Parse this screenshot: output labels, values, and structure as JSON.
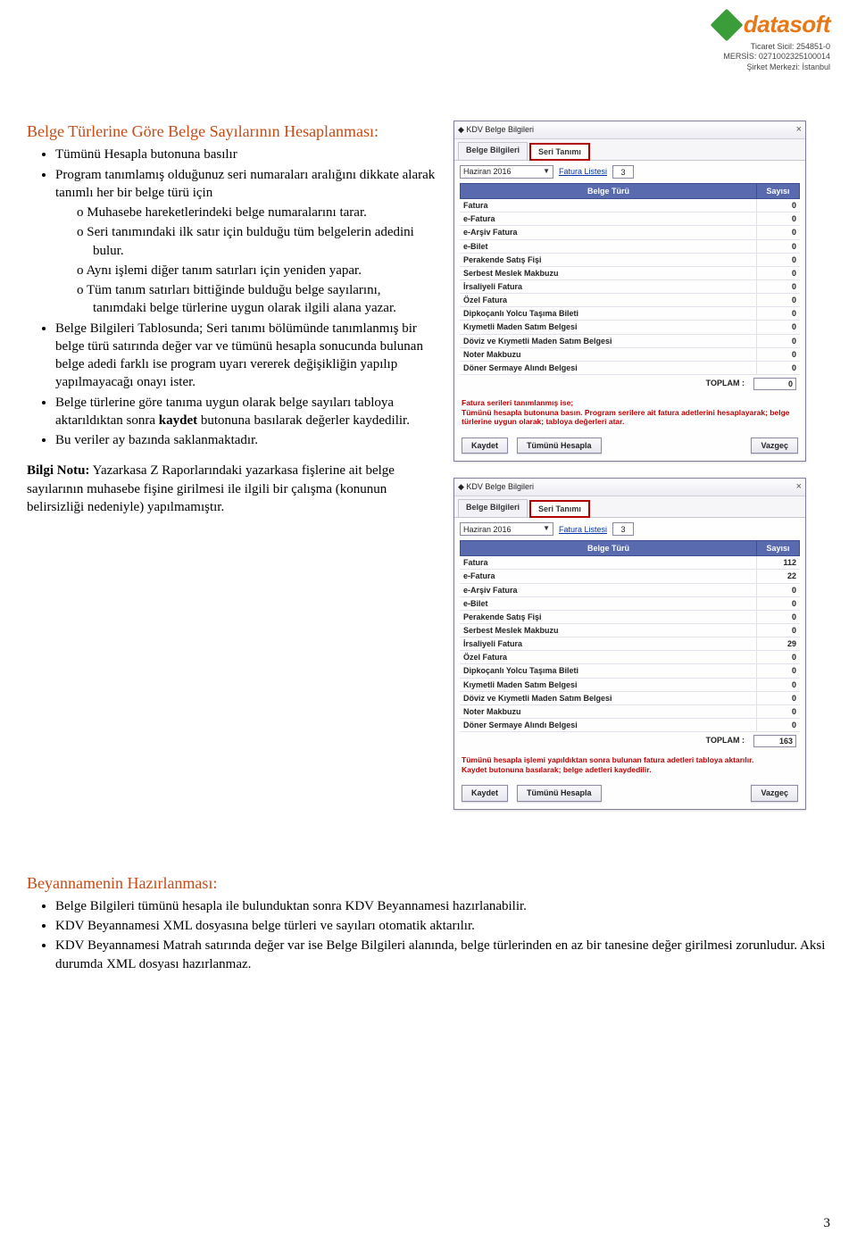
{
  "header": {
    "logo_text": "datasoft",
    "meta_line1": "Ticaret Sicil: 254851-0",
    "meta_line2": "MERSİS: 0271002325100014",
    "meta_line3": "Şirket Merkezi: İstanbul"
  },
  "section1_title": "Belge Türlerine Göre Belge Sayılarının Hesaplanması:",
  "bullets1": [
    "Tümünü Hesapla butonuna basılır",
    "Program tanımlamış olduğunuz seri numaraları aralığını dikkate alarak tanımlı her bir belge türü için"
  ],
  "sub_bullets1": [
    "Muhasebe hareketlerindeki belge numaralarını tarar.",
    "Seri tanımındaki ilk satır için bulduğu tüm belgelerin adedini bulur.",
    "Aynı işlemi diğer tanım satırları için yeniden yapar.",
    "Tüm tanım satırları bittiğinde bulduğu belge sayılarını, tanımdaki belge türlerine uygun olarak ilgili alana yazar."
  ],
  "bullets2": [
    "Belge Bilgileri Tablosunda; Seri tanımı bölümünde tanımlanmış bir belge türü satırında değer var ve tümünü hesapla sonucunda bulunan belge adedi farklı ise program uyarı vererek değişikliğin yapılıp yapılmayacağı onayı ister.",
    "Belge türlerine göre tanıma uygun olarak belge sayıları tabloya aktarıldıktan sonra kaydet butonuna basılarak değerler kaydedilir.",
    "Bu veriler ay bazında saklanmaktadır."
  ],
  "bilgi_prefix": "Bilgi Notu:",
  "bilgi_text": " Yazarkasa Z Raporlarındaki yazarkasa fişlerine ait belge sayılarının muhasebe fişine girilmesi ile ilgili bir çalışma (konunun belirsizliği nedeniyle) yapılmamıştır.",
  "section2_title": "Beyannamenin Hazırlanması:",
  "bullets3": [
    "Belge Bilgileri tümünü hesapla ile bulunduktan sonra KDV Beyannamesi hazırlanabilir.",
    "KDV Beyannamesi XML dosyasına belge türleri ve sayıları otomatik aktarılır.",
    "KDV Beyannamesi Matrah satırında değer var ise Belge Bilgileri alanında, belge türlerinden en az bir tanesine değer girilmesi zorunludur. Aksi durumda XML dosyası hazırlanmaz."
  ],
  "page_number": "3",
  "win": {
    "title": "KDV Belge Bilgileri",
    "tab1": "Belge Bilgileri",
    "tab2": "Seri Tanımı",
    "dropdown": "Haziran 2016",
    "fatura_link": "Fatura Listesi",
    "fatura_count": "3",
    "col_turu": "Belge Türü",
    "col_sayisi": "Sayısı",
    "rows": [
      {
        "name": "Fatura"
      },
      {
        "name": "e-Fatura"
      },
      {
        "name": "e-Arşiv Fatura"
      },
      {
        "name": "e-Bilet"
      },
      {
        "name": "Perakende Satış Fişi"
      },
      {
        "name": "Serbest Meslek Makbuzu"
      },
      {
        "name": "İrsaliyeli Fatura"
      },
      {
        "name": "Özel Fatura"
      },
      {
        "name": "Dipkoçanlı Yolcu Taşıma Bileti"
      },
      {
        "name": "Kıymetli Maden Satım Belgesi"
      },
      {
        "name": "Döviz ve Kıymetli Maden Satım Belgesi"
      },
      {
        "name": "Noter Makbuzu"
      },
      {
        "name": "Döner Sermaye Alındı Belgesi"
      }
    ],
    "values1": [
      "0",
      "0",
      "0",
      "0",
      "0",
      "0",
      "0",
      "0",
      "0",
      "0",
      "0",
      "0",
      "0"
    ],
    "values2": [
      "112",
      "22",
      "0",
      "0",
      "0",
      "0",
      "29",
      "0",
      "0",
      "0",
      "0",
      "0",
      "0"
    ],
    "toplam_label": "TOPLAM :",
    "toplam1": "0",
    "toplam2": "163",
    "note1_line1": "Fatura serileri tanımlanmış ise;",
    "note1_line2": "Tümünü hesapla butonuna basın. Program serilere ait fatura adetlerini hesaplayarak; belge türlerine uygun olarak; tabloya değerleri atar.",
    "note2_line1": "Tümünü hesapla işlemi yapıldıktan sonra bulunan fatura adetleri tabloya aktarılır.",
    "note2_line2": "Kaydet butonuna basılarak; belge adetleri kaydedilir.",
    "btn_kaydet": "Kaydet",
    "btn_hesapla": "Tümünü Hesapla",
    "btn_vazgec": "Vazgeç"
  }
}
